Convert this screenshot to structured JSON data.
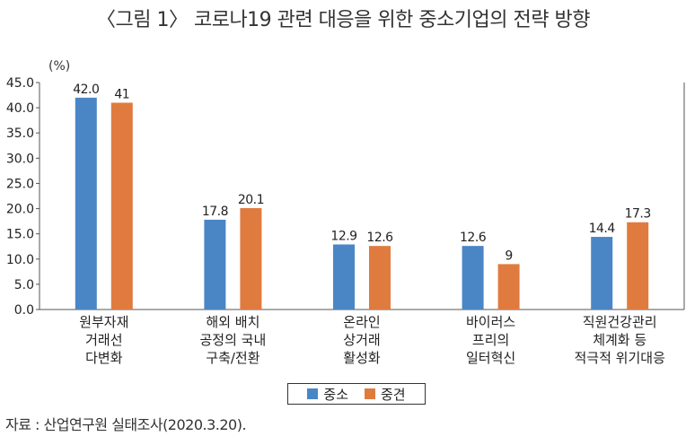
{
  "title": "〈그림 1〉 코로나19 관련 대응을 위한 중소기업의 전략 방향",
  "source": "자료 : 산업연구원 실태조사(2020.3.20).",
  "chart_data": {
    "type": "bar",
    "ylabel": "(%)",
    "ylim": [
      0,
      45
    ],
    "yticks": [
      "0.0",
      "5.0",
      "10.0",
      "15.0",
      "20.0",
      "25.0",
      "30.0",
      "35.0",
      "40.0",
      "45.0"
    ],
    "grid": false,
    "legend_position": "bottom",
    "categories": [
      [
        "원부자재",
        "거래선",
        "다변화"
      ],
      [
        "해외 배치",
        "공정의 국내",
        "구축/전환"
      ],
      [
        "온라인",
        "상거래",
        "활성화"
      ],
      [
        "바이러스",
        "프리의",
        "일터혁신"
      ],
      [
        "직원건강관리",
        "체계화 등",
        "적극적 위기대응"
      ]
    ],
    "series": [
      {
        "name": "중소",
        "color": "#4a86c5",
        "values": [
          42.0,
          17.8,
          12.9,
          12.6,
          14.4
        ],
        "labels": [
          "42.0",
          "17.8",
          "12.9",
          "12.6",
          "14.4"
        ]
      },
      {
        "name": "중견",
        "color": "#e07b3f",
        "values": [
          41,
          20.1,
          12.6,
          9,
          17.3
        ],
        "labels": [
          "41",
          "20.1",
          "12.6",
          "9",
          "17.3"
        ]
      }
    ]
  }
}
